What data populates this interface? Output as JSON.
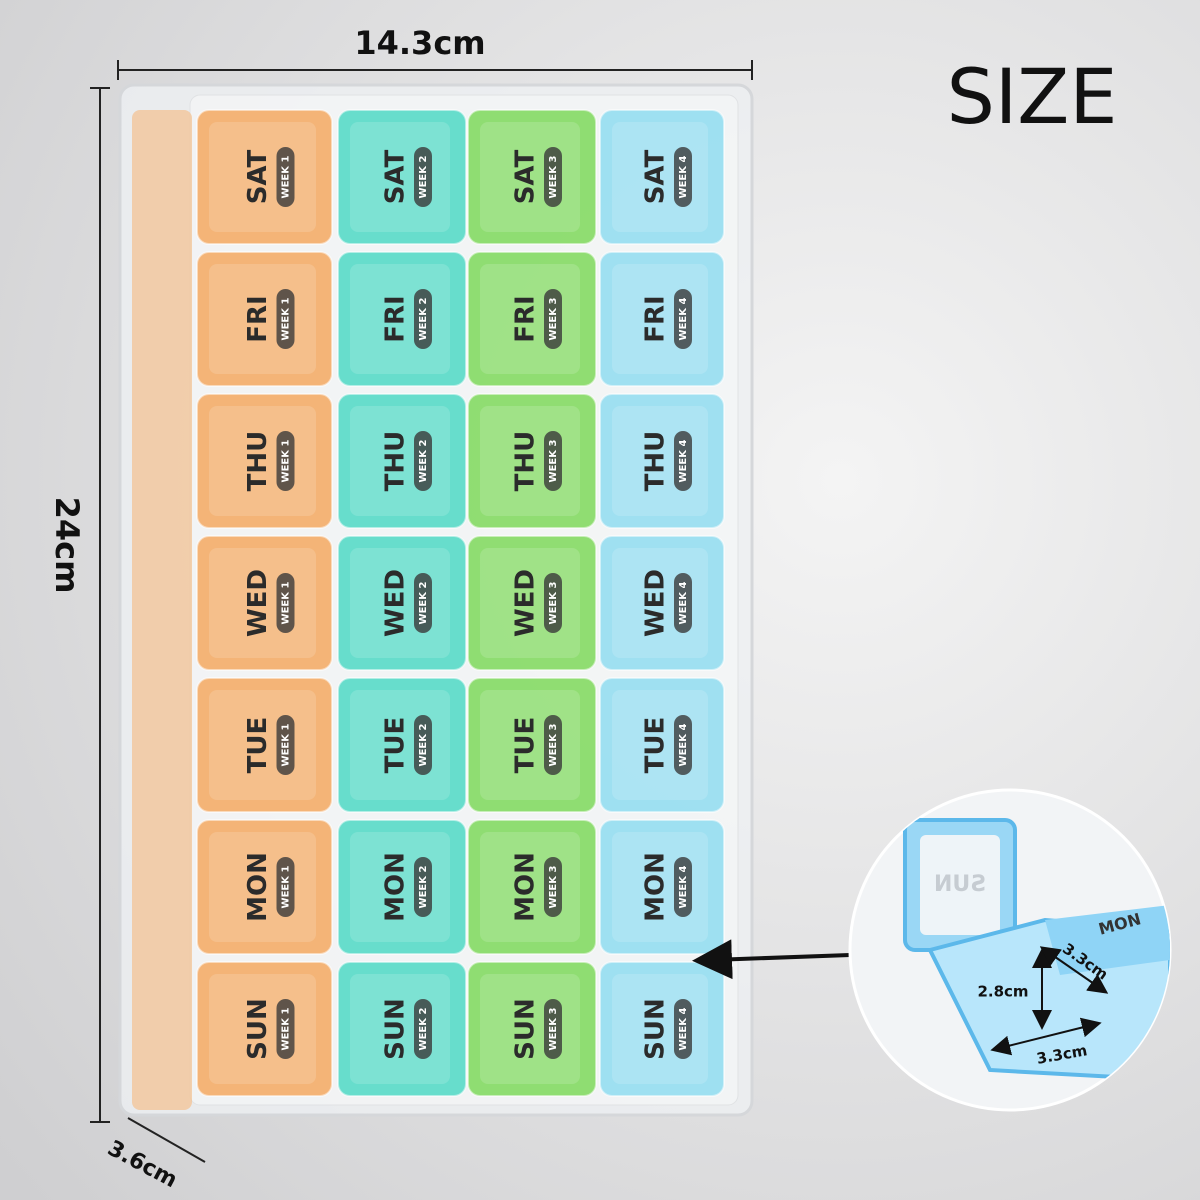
{
  "dimensions": {
    "width": "14.3cm",
    "height": "24cm",
    "depth": "3.6cm"
  },
  "header": {
    "title": "SIZE"
  },
  "days": [
    "SAT",
    "FRI",
    "THU",
    "WED",
    "TUE",
    "MON",
    "SUN"
  ],
  "columns": [
    {
      "week": "WEEK 1",
      "color": "#f5a860"
    },
    {
      "week": "WEEK 2",
      "color": "#4fd8c4"
    },
    {
      "week": "WEEK 3",
      "color": "#7ed85a"
    },
    {
      "week": "WEEK 4",
      "color": "#8fdcf0"
    }
  ],
  "inset": {
    "open_lid": "SUN",
    "next_lid": "MON",
    "width": "3.3cm",
    "height": "2.8cm",
    "length": "3.3cm"
  }
}
